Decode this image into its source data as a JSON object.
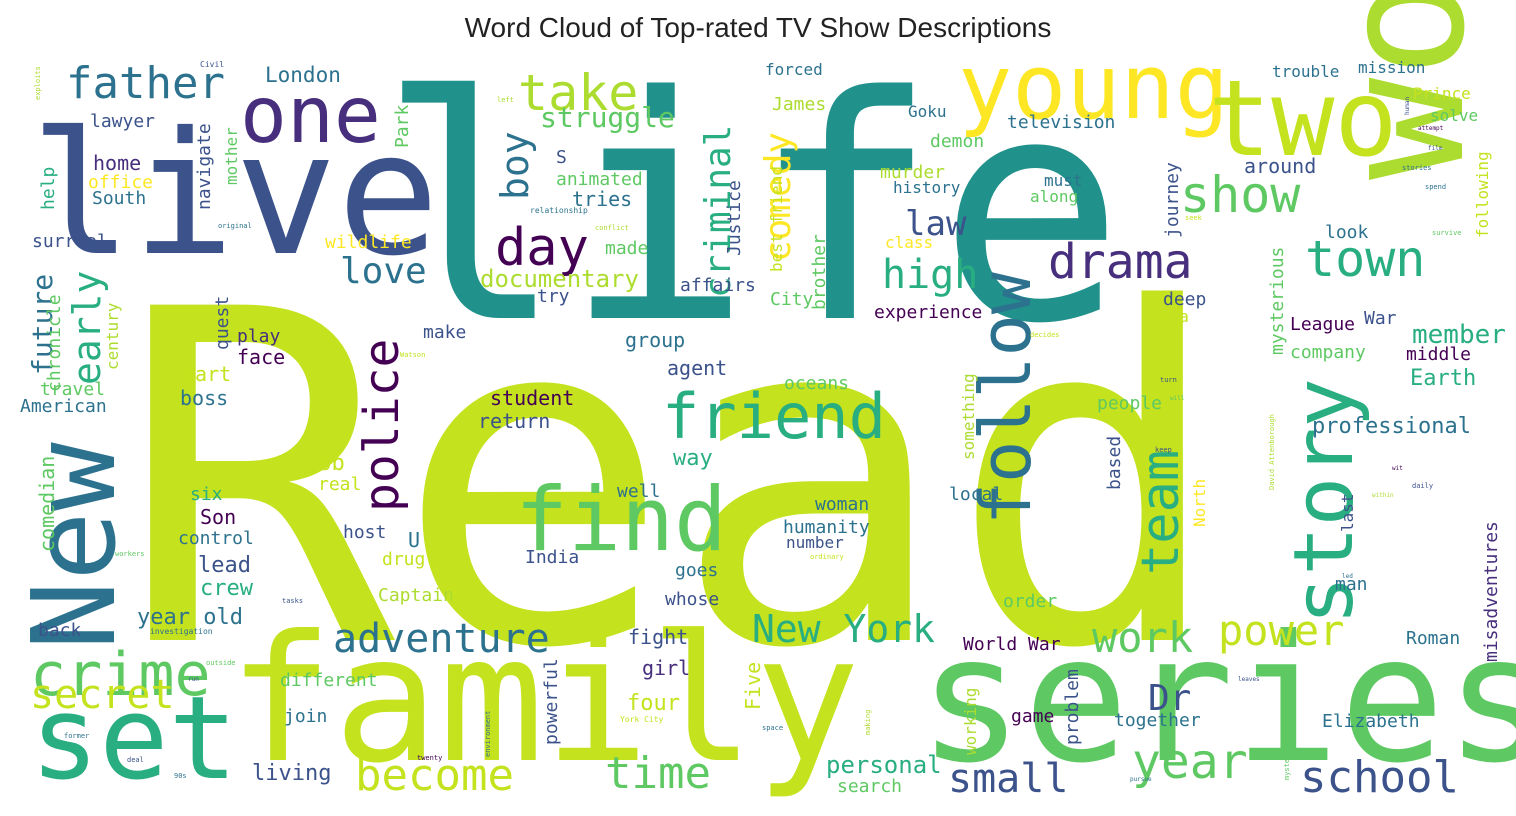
{
  "title": "Word Cloud of Top-rated TV Show Descriptions",
  "palette": [
    "#440154",
    "#472f7d",
    "#3b528b",
    "#2c728e",
    "#21918c",
    "#28ae80",
    "#5ec962",
    "#addc30",
    "#c4e21d",
    "#fde725"
  ],
  "words": [
    {
      "text": "Read",
      "color": "#c4e21d"
    },
    {
      "text": "life",
      "color": "#21918c"
    },
    {
      "text": "live",
      "color": "#3b528b"
    },
    {
      "text": "family",
      "color": "#c4e21d"
    },
    {
      "text": "series",
      "color": "#5ec962"
    },
    {
      "text": "world",
      "color": "#addc30"
    },
    {
      "text": "New",
      "color": "#2c728e"
    },
    {
      "text": "set",
      "color": "#28ae80"
    },
    {
      "text": "young",
      "color": "#fde725"
    },
    {
      "text": "two",
      "color": "#c4e21d"
    },
    {
      "text": "one",
      "color": "#472f7d"
    },
    {
      "text": "find",
      "color": "#5ec962"
    },
    {
      "text": "story",
      "color": "#28ae80"
    },
    {
      "text": "follow",
      "color": "#2c728e"
    },
    {
      "text": "friend",
      "color": "#28ae80"
    },
    {
      "text": "crime",
      "color": "#5ec962"
    },
    {
      "text": "take",
      "color": "#addc30"
    },
    {
      "text": "father",
      "color": "#2c728e"
    },
    {
      "text": "day",
      "color": "#440154"
    },
    {
      "text": "drama",
      "color": "#472f7d"
    },
    {
      "text": "show",
      "color": "#5ec962"
    },
    {
      "text": "town",
      "color": "#28ae80"
    },
    {
      "text": "police",
      "color": "#440154"
    },
    {
      "text": "team",
      "color": "#28ae80"
    },
    {
      "text": "adventure",
      "color": "#2c728e"
    },
    {
      "text": "secret",
      "color": "#c4e21d"
    },
    {
      "text": "become",
      "color": "#c4e21d"
    },
    {
      "text": "time",
      "color": "#5ec962"
    },
    {
      "text": "New York",
      "color": "#28ae80"
    },
    {
      "text": "work",
      "color": "#5ec962"
    },
    {
      "text": "power",
      "color": "#c4e21d"
    },
    {
      "text": "year",
      "color": "#5ec962"
    },
    {
      "text": "small",
      "color": "#3b528b"
    },
    {
      "text": "school",
      "color": "#3b528b"
    },
    {
      "text": "high",
      "color": "#28ae80"
    },
    {
      "text": "love",
      "color": "#2c728e"
    },
    {
      "text": "boy",
      "color": "#2c728e"
    },
    {
      "text": "criminal",
      "color": "#28ae80"
    },
    {
      "text": "comedy",
      "color": "#fde725"
    },
    {
      "text": "early",
      "color": "#28ae80"
    },
    {
      "text": "struggle",
      "color": "#5ec962"
    },
    {
      "text": "law",
      "color": "#3b528b"
    },
    {
      "text": "Dr",
      "color": "#3b528b"
    },
    {
      "text": "documentary",
      "color": "#addc30"
    },
    {
      "text": "future",
      "color": "#2c728e"
    },
    {
      "text": "member",
      "color": "#28ae80"
    },
    {
      "text": "London",
      "color": "#2c728e"
    },
    {
      "text": "Earth",
      "color": "#28ae80"
    },
    {
      "text": "professional",
      "color": "#2c728e"
    },
    {
      "text": "personal",
      "color": "#28ae80"
    },
    {
      "text": "living",
      "color": "#3b528b"
    },
    {
      "text": "year old",
      "color": "#2c728e"
    },
    {
      "text": "lead",
      "color": "#3b528b"
    },
    {
      "text": "crew",
      "color": "#28ae80"
    },
    {
      "text": "comedian",
      "color": "#5ec962"
    },
    {
      "text": "home",
      "color": "#472f7d"
    },
    {
      "text": "surreal",
      "color": "#3b528b"
    },
    {
      "text": "American",
      "color": "#2c728e"
    },
    {
      "text": "travel",
      "color": "#5ec962"
    },
    {
      "text": "chronicle",
      "color": "#5ec962"
    },
    {
      "text": "century",
      "color": "#addc30"
    },
    {
      "text": "help",
      "color": "#28ae80"
    },
    {
      "text": "office",
      "color": "#fde725"
    },
    {
      "text": "South",
      "color": "#2c728e"
    },
    {
      "text": "lawyer",
      "color": "#3b528b"
    },
    {
      "text": "navigate",
      "color": "#3b528b"
    },
    {
      "text": "mother",
      "color": "#5ec962"
    },
    {
      "text": "Park",
      "color": "#5ec962"
    },
    {
      "text": "quest",
      "color": "#3b528b"
    },
    {
      "text": "play",
      "color": "#472f7d"
    },
    {
      "text": "face",
      "color": "#440154"
    },
    {
      "text": "part",
      "color": "#c4e21d"
    },
    {
      "text": "boss",
      "color": "#2c728e"
    },
    {
      "text": "job",
      "color": "#c4e21d"
    },
    {
      "text": "real",
      "color": "#c4e21d"
    },
    {
      "text": "six",
      "color": "#28ae80"
    },
    {
      "text": "Son",
      "color": "#440154"
    },
    {
      "text": "control",
      "color": "#2c728e"
    },
    {
      "text": "wildlife",
      "color": "#fde725"
    },
    {
      "text": "try",
      "color": "#3b528b"
    },
    {
      "text": "make",
      "color": "#3b528b"
    },
    {
      "text": "group",
      "color": "#2c728e"
    },
    {
      "text": "agent",
      "color": "#3b528b"
    },
    {
      "text": "student",
      "color": "#440154"
    },
    {
      "text": "return",
      "color": "#3b528b"
    },
    {
      "text": "way",
      "color": "#28ae80"
    },
    {
      "text": "well",
      "color": "#2c728e"
    },
    {
      "text": "U",
      "color": "#2c728e"
    },
    {
      "text": "host",
      "color": "#3b528b"
    },
    {
      "text": "drug",
      "color": "#c4e21d"
    },
    {
      "text": "India",
      "color": "#3b528b"
    },
    {
      "text": "goes",
      "color": "#2c728e"
    },
    {
      "text": "whose",
      "color": "#3b528b"
    },
    {
      "text": "Captain",
      "color": "#addc30"
    },
    {
      "text": "fight",
      "color": "#3b528b"
    },
    {
      "text": "girl",
      "color": "#472f7d"
    },
    {
      "text": "four",
      "color": "#c4e21d"
    },
    {
      "text": "powerful",
      "color": "#3b528b"
    },
    {
      "text": "Five",
      "color": "#c4e21d"
    },
    {
      "text": "different",
      "color": "#5ec962"
    },
    {
      "text": "join",
      "color": "#2c728e"
    },
    {
      "text": "back",
      "color": "#3b528b"
    },
    {
      "text": "animated",
      "color": "#5ec962"
    },
    {
      "text": "tries",
      "color": "#2c728e"
    },
    {
      "text": "S",
      "color": "#3b528b"
    },
    {
      "text": "made",
      "color": "#5ec962"
    },
    {
      "text": "affairs",
      "color": "#3b528b"
    },
    {
      "text": "Justice",
      "color": "#3b528b"
    },
    {
      "text": "best friend",
      "color": "#c4e21d"
    },
    {
      "text": "brother",
      "color": "#5ec962"
    },
    {
      "text": "City",
      "color": "#5ec962"
    },
    {
      "text": "forced",
      "color": "#2c728e"
    },
    {
      "text": "James",
      "color": "#addc30"
    },
    {
      "text": "Goku",
      "color": "#2c728e"
    },
    {
      "text": "demon",
      "color": "#5ec962"
    },
    {
      "text": "murder",
      "color": "#addc30"
    },
    {
      "text": "history",
      "color": "#2c728e"
    },
    {
      "text": "must",
      "color": "#2c728e"
    },
    {
      "text": "along",
      "color": "#5ec962"
    },
    {
      "text": "television",
      "color": "#2c728e"
    },
    {
      "text": "journey",
      "color": "#3b528b"
    },
    {
      "text": "around",
      "color": "#3b528b"
    },
    {
      "text": "class",
      "color": "#fde725"
    },
    {
      "text": "experience",
      "color": "#440154"
    },
    {
      "text": "deep",
      "color": "#3b528b"
    },
    {
      "text": "era",
      "color": "#c4e21d"
    },
    {
      "text": "mysterious",
      "color": "#5ec962"
    },
    {
      "text": "League",
      "color": "#440154"
    },
    {
      "text": "War",
      "color": "#3b528b"
    },
    {
      "text": "company",
      "color": "#5ec962"
    },
    {
      "text": "middle",
      "color": "#440154"
    },
    {
      "text": "oceans",
      "color": "#5ec962"
    },
    {
      "text": "people",
      "color": "#5ec962"
    },
    {
      "text": "based",
      "color": "#3b528b"
    },
    {
      "text": "local",
      "color": "#2c728e"
    },
    {
      "text": "woman",
      "color": "#2c728e"
    },
    {
      "text": "humanity",
      "color": "#2c728e"
    },
    {
      "text": "number",
      "color": "#3b528b"
    },
    {
      "text": "something",
      "color": "#addc30"
    },
    {
      "text": "North",
      "color": "#fde725"
    },
    {
      "text": "last",
      "color": "#3b528b"
    },
    {
      "text": "order",
      "color": "#5ec962"
    },
    {
      "text": "World War",
      "color": "#440154"
    },
    {
      "text": "late",
      "color": "#c4e21d"
    },
    {
      "text": "working",
      "color": "#addc30"
    },
    {
      "text": "problem",
      "color": "#3b528b"
    },
    {
      "text": "game",
      "color": "#440154"
    },
    {
      "text": "together",
      "color": "#2c728e"
    },
    {
      "text": "search",
      "color": "#5ec962"
    },
    {
      "text": "man",
      "color": "#2c728e"
    },
    {
      "text": "Roman",
      "color": "#2c728e"
    },
    {
      "text": "Elizabeth",
      "color": "#2c728e"
    },
    {
      "text": "misadventures",
      "color": "#472f7d"
    },
    {
      "text": "following",
      "color": "#c4e21d"
    },
    {
      "text": "look",
      "color": "#2c728e"
    },
    {
      "text": "trouble",
      "color": "#2c728e"
    },
    {
      "text": "mission",
      "color": "#2c728e"
    },
    {
      "text": "Prince",
      "color": "#c4e21d"
    },
    {
      "text": "solve",
      "color": "#5ec962"
    },
    {
      "text": "Civil",
      "color": "#3b528b"
    },
    {
      "text": "exploits",
      "color": "#addc30"
    },
    {
      "text": "left",
      "color": "#addc30"
    },
    {
      "text": "original",
      "color": "#2c728e"
    },
    {
      "text": "relationship",
      "color": "#2c728e"
    },
    {
      "text": "conflict",
      "color": "#addc30"
    },
    {
      "text": "seek",
      "color": "#c4e21d"
    },
    {
      "text": "human",
      "color": "#3b528b"
    },
    {
      "text": "film",
      "color": "#3b528b"
    },
    {
      "text": "stories",
      "color": "#2c728e"
    },
    {
      "text": "attempt",
      "color": "#440154"
    },
    {
      "text": "spend",
      "color": "#2c728e"
    },
    {
      "text": "survive",
      "color": "#5ec962"
    },
    {
      "text": "decides",
      "color": "#c4e21d"
    },
    {
      "text": "Watson",
      "color": "#c4e21d"
    },
    {
      "text": "turn",
      "color": "#3b528b"
    },
    {
      "text": "David Attenborough",
      "color": "#addc30"
    },
    {
      "text": "will",
      "color": "#5ec962"
    },
    {
      "text": "within",
      "color": "#addc30"
    },
    {
      "text": "keep",
      "color": "#3b528b"
    },
    {
      "text": "daily",
      "color": "#3b528b"
    },
    {
      "text": "led",
      "color": "#2c728e"
    },
    {
      "text": "ordinary",
      "color": "#c4e21d"
    },
    {
      "text": "workers",
      "color": "#5ec962"
    },
    {
      "text": "tasks",
      "color": "#3b528b"
    },
    {
      "text": "investigation",
      "color": "#2c728e"
    },
    {
      "text": "outside",
      "color": "#5ec962"
    },
    {
      "text": "run",
      "color": "#3b528b"
    },
    {
      "text": "former",
      "color": "#2c728e"
    },
    {
      "text": "deal",
      "color": "#3b528b"
    },
    {
      "text": "90s",
      "color": "#2c728e"
    },
    {
      "text": "twenty",
      "color": "#440154"
    },
    {
      "text": "environment",
      "color": "#2c728e"
    },
    {
      "text": "York City",
      "color": "#c4e21d"
    },
    {
      "text": "making",
      "color": "#addc30"
    },
    {
      "text": "space",
      "color": "#2c728e"
    },
    {
      "text": "pursue",
      "color": "#2c728e"
    },
    {
      "text": "mystery",
      "color": "#5ec962"
    },
    {
      "text": "leaves",
      "color": "#3b528b"
    },
    {
      "text": "wit",
      "color": "#440154"
    }
  ]
}
